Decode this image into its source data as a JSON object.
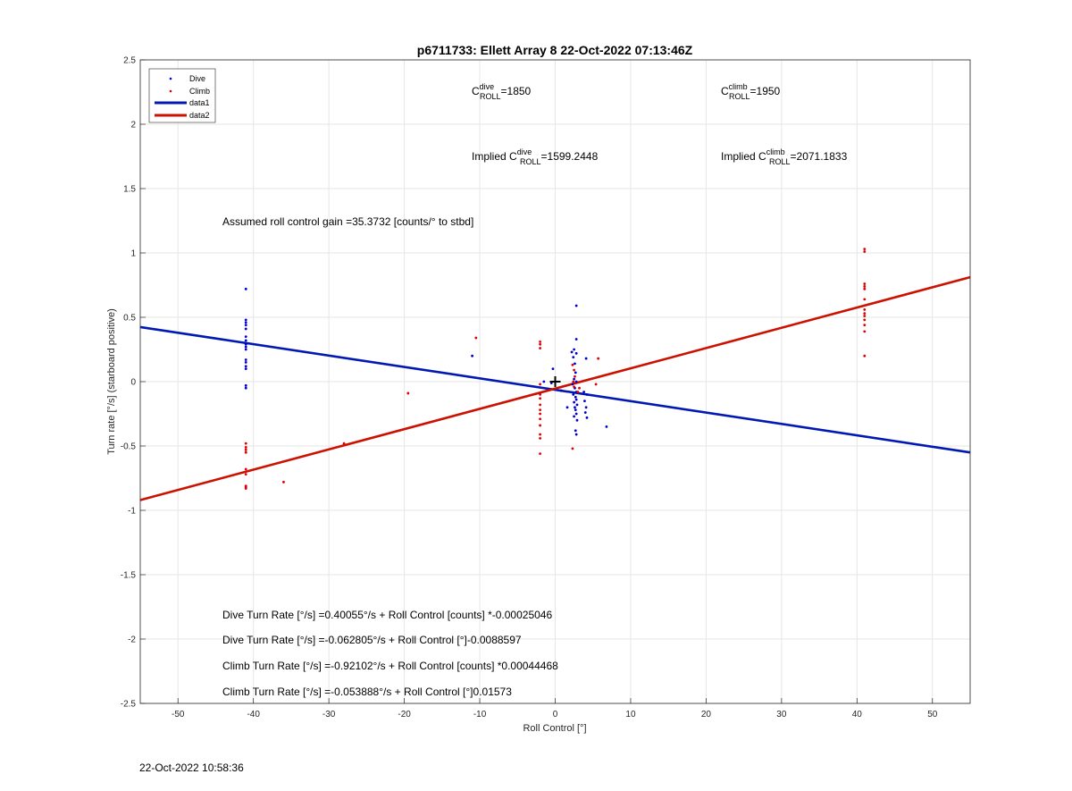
{
  "chart_data": {
    "type": "scatter",
    "title": "p6711733: Ellett Array 8 22-Oct-2022 07:13:46Z",
    "xlabel": "Roll Control [°]",
    "ylabel": "Turn rate [°/s] (starboard positive)",
    "xlim": [
      -55,
      55
    ],
    "ylim": [
      -2.5,
      2.5
    ],
    "xticks": [
      -50,
      -40,
      -30,
      -20,
      -10,
      0,
      10,
      20,
      30,
      40,
      50
    ],
    "xtick_labels": [
      "-50",
      "-40",
      "-30",
      "-20",
      "-10",
      "0",
      "10",
      "20",
      "30",
      "40",
      "50"
    ],
    "yticks": [
      -2.5,
      -2,
      -1.5,
      -1,
      -0.5,
      0,
      0.5,
      1,
      1.5,
      2,
      2.5
    ],
    "ytick_labels": [
      "-2.5",
      "-2",
      "-1.5",
      "-1",
      "-0.5",
      "0",
      "0.5",
      "1",
      "1.5",
      "2",
      "2.5"
    ],
    "grid": true,
    "legend_position": "top-left",
    "colors": {
      "dive": "#0000cc",
      "climb": "#dd0000",
      "data1": "#0019b3",
      "data2": "#cc1100"
    },
    "legend": [
      "Dive",
      "Climb",
      "data1",
      "data2"
    ],
    "series": [
      {
        "name": "Dive",
        "style": "points",
        "points": [
          [
            -41,
            0.72
          ],
          [
            -41,
            0.48
          ],
          [
            -41,
            0.46
          ],
          [
            -41,
            0.44
          ],
          [
            -41,
            0.41
          ],
          [
            -41,
            0.35
          ],
          [
            -41,
            0.32
          ],
          [
            -41,
            0.29
          ],
          [
            -41,
            0.27
          ],
          [
            -41,
            0.25
          ],
          [
            -41,
            0.17
          ],
          [
            -41,
            0.15
          ],
          [
            -41,
            0.12
          ],
          [
            -41,
            0.1
          ],
          [
            -41,
            -0.03
          ],
          [
            -41,
            -0.05
          ],
          [
            -11,
            0.2
          ],
          [
            -1.5,
            0.0
          ],
          [
            -0.3,
            0.1
          ],
          [
            -0.5,
            -0.01
          ],
          [
            2.8,
            0.59
          ],
          [
            2.8,
            0.33
          ],
          [
            2.5,
            0.25
          ],
          [
            2.2,
            0.23
          ],
          [
            2.8,
            0.22
          ],
          [
            2.4,
            0.19
          ],
          [
            2.6,
            0.14
          ],
          [
            2.7,
            0.07
          ],
          [
            2.5,
            0.02
          ],
          [
            2.8,
            0.0
          ],
          [
            2.3,
            -0.02
          ],
          [
            2.6,
            -0.05
          ],
          [
            2.8,
            -0.08
          ],
          [
            2.4,
            -0.1
          ],
          [
            2.7,
            -0.12
          ],
          [
            2.8,
            -0.14
          ],
          [
            2.5,
            -0.16
          ],
          [
            2.9,
            -0.18
          ],
          [
            2.6,
            -0.2
          ],
          [
            2.7,
            -0.22
          ],
          [
            2.8,
            -0.25
          ],
          [
            2.5,
            -0.27
          ],
          [
            2.9,
            -0.3
          ],
          [
            2.7,
            -0.38
          ],
          [
            2.8,
            -0.41
          ],
          [
            3.8,
            -0.08
          ],
          [
            4.1,
            0.18
          ],
          [
            4.2,
            -0.1
          ],
          [
            3.9,
            -0.15
          ],
          [
            4.1,
            -0.2
          ],
          [
            4.0,
            -0.24
          ],
          [
            4.2,
            -0.28
          ],
          [
            6.8,
            -0.35
          ],
          [
            1.6,
            -0.2
          ],
          [
            0.8,
            -0.07
          ]
        ]
      },
      {
        "name": "Climb",
        "style": "points",
        "points": [
          [
            -41,
            -0.48
          ],
          [
            -41,
            -0.51
          ],
          [
            -41,
            -0.53
          ],
          [
            -41,
            -0.55
          ],
          [
            -41,
            -0.68
          ],
          [
            -41,
            -0.72
          ],
          [
            -41,
            -0.81
          ],
          [
            -41,
            -0.82
          ],
          [
            -41,
            -0.83
          ],
          [
            -36,
            -0.78
          ],
          [
            -28,
            -0.48
          ],
          [
            -19.5,
            -0.09
          ],
          [
            -10.5,
            0.34
          ],
          [
            -2,
            0.31
          ],
          [
            -2,
            0.29
          ],
          [
            -2,
            0.26
          ],
          [
            -2,
            -0.02
          ],
          [
            -2,
            -0.1
          ],
          [
            -2,
            -0.13
          ],
          [
            -2,
            -0.18
          ],
          [
            -2,
            -0.22
          ],
          [
            -2,
            -0.25
          ],
          [
            -2,
            -0.29
          ],
          [
            -2,
            -0.34
          ],
          [
            -2,
            -0.41
          ],
          [
            -2,
            -0.44
          ],
          [
            -2,
            -0.56
          ],
          [
            2.3,
            0.13
          ],
          [
            2.5,
            0.09
          ],
          [
            2.6,
            0.04
          ],
          [
            2.4,
            0.0
          ],
          [
            2.5,
            -0.04
          ],
          [
            2.3,
            -0.52
          ],
          [
            3.0,
            -0.08
          ],
          [
            3.2,
            -0.05
          ],
          [
            5.7,
            0.18
          ],
          [
            5.4,
            -0.02
          ],
          [
            41,
            1.03
          ],
          [
            41,
            1.01
          ],
          [
            41,
            0.76
          ],
          [
            41,
            0.74
          ],
          [
            41,
            0.72
          ],
          [
            41,
            0.64
          ],
          [
            41,
            0.56
          ],
          [
            41,
            0.53
          ],
          [
            41,
            0.51
          ],
          [
            41,
            0.48
          ],
          [
            41,
            0.44
          ],
          [
            41,
            0.39
          ],
          [
            41,
            0.2
          ]
        ]
      },
      {
        "name": "data1",
        "style": "line",
        "points": [
          [
            -55,
            0.424
          ],
          [
            55,
            -0.55
          ]
        ]
      },
      {
        "name": "data2",
        "style": "line",
        "points": [
          [
            -55,
            -0.92
          ],
          [
            55,
            0.812
          ]
        ]
      }
    ],
    "marker": {
      "symbol": "+",
      "x": 0,
      "y": 0
    },
    "annotations": {
      "c_dive_prefix": "C",
      "c_dive_sup": "dive",
      "c_dive_sub": "ROLL",
      "c_dive_value": "=1850",
      "c_climb_prefix": "C",
      "c_climb_sup": "climb",
      "c_climb_sub": "ROLL",
      "c_climb_value": "=1950",
      "implied_dive_prefix": "Implied C",
      "implied_dive_sup": "dive",
      "implied_dive_sub": "ROLL",
      "implied_dive_value": "=1599.2448",
      "implied_climb_prefix": "Implied C",
      "implied_climb_sup": "climb",
      "implied_climb_sub": "ROLL",
      "implied_climb_value": "=2071.1833",
      "gain": "Assumed roll control gain =35.3732 [counts/° to stbd]",
      "eq1": "Dive Turn Rate [°/s] =0.40055°/s + Roll Control [counts] *-0.00025046",
      "eq2": "Dive Turn Rate [°/s] =-0.062805°/s + Roll Control [°]-0.0088597",
      "eq3": "Climb Turn Rate [°/s] =-0.92102°/s + Roll Control [counts] *0.00044468",
      "eq4": "Climb Turn Rate [°/s] =-0.053888°/s + Roll Control [°]0.01573"
    }
  },
  "timestamp": "22-Oct-2022 10:58:36"
}
